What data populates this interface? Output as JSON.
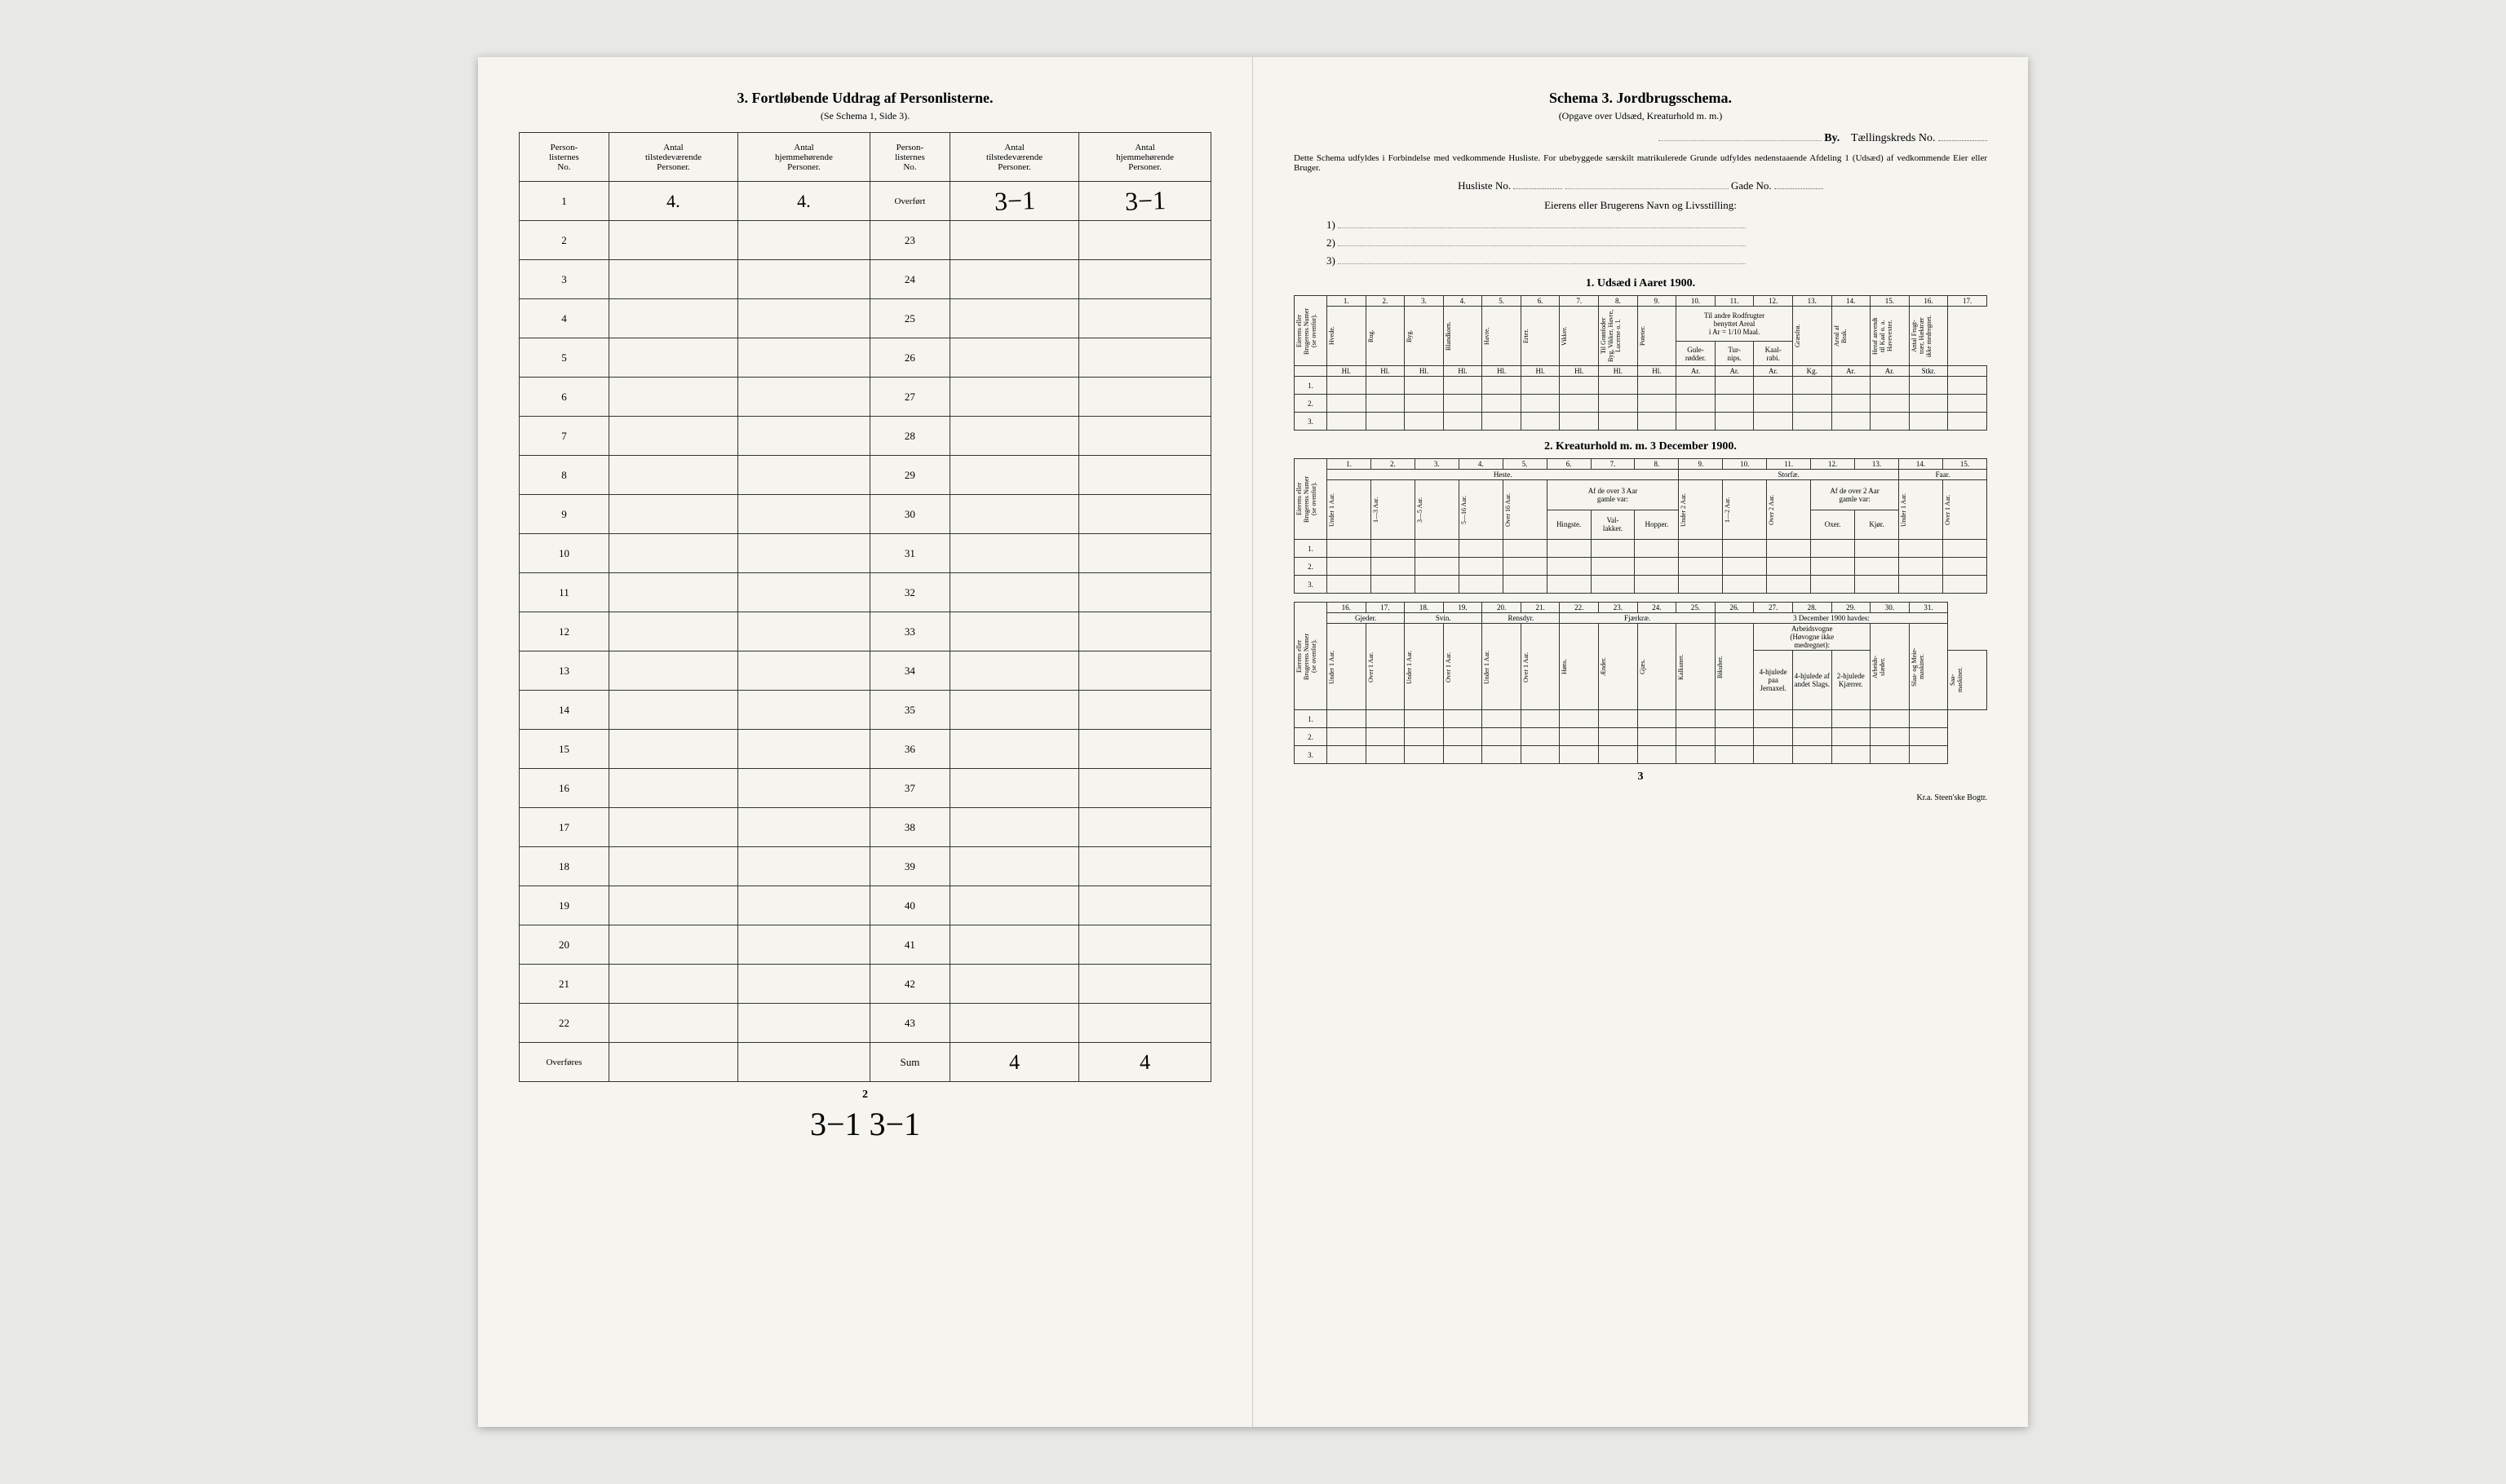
{
  "left_page": {
    "title": "3.  Fortløbende Uddrag af Personlisterne.",
    "subtitle": "(Se Schema 1, Side 3).",
    "columns": [
      "Person-\nlisternes\nNo.",
      "Antal\ntilstedeværende\nPersoner.",
      "Antal\nhjemmehørende\nPersoner.",
      "Person-\nlisternes\nNo.",
      "Antal\ntilstedeværende\nPersoner.",
      "Antal\nhjemmehørende\nPersoner."
    ],
    "left_rows": [
      "1",
      "2",
      "3",
      "4",
      "5",
      "6",
      "7",
      "8",
      "9",
      "10",
      "11",
      "12",
      "13",
      "14",
      "15",
      "16",
      "17",
      "18",
      "19",
      "20",
      "21",
      "22"
    ],
    "right_rows": [
      "Overført",
      "23",
      "24",
      "25",
      "26",
      "27",
      "28",
      "29",
      "30",
      "31",
      "32",
      "33",
      "34",
      "35",
      "36",
      "37",
      "38",
      "39",
      "40",
      "41",
      "42",
      "43"
    ],
    "left_footer": "Overføres",
    "right_footer": "Sum",
    "hw_row1_c1": "4.",
    "hw_row1_c2": "4.",
    "hw_overfort_c1": "3−1",
    "hw_overfort_c2": "3−1",
    "hw_sum_c1": "4",
    "hw_sum_c2": "4",
    "page_number": "2",
    "bottom_scrawl": "3−1 3−1"
  },
  "right_page": {
    "title": "Schema 3.  Jordbrugsschema.",
    "subtitle": "(Opgave over Udsæd, Kreaturhold m. m.)",
    "by_label": "By.",
    "kreds_label": "Tællingskreds No.",
    "intro_para": "Dette Schema udfyldes i Forbindelse med vedkommende Husliste. For ubebyggede særskilt matrikulerede Grunde udfyldes nedenstaaende Afdeling 1 (Udsæd) af vedkommende Eier eller Bruger.",
    "husliste_label": "Husliste No.",
    "gade_label": "Gade No.",
    "owner_heading": "Eierens eller Brugerens Navn og Livsstilling:",
    "numbered": [
      "1)",
      "2)",
      "3)"
    ],
    "section1_title": "1.  Udsæd i Aaret 1900.",
    "section2_title": "2.  Kreaturhold m. m. 3 December 1900.",
    "row_label_header": "Eierens eller\nBrugerens Numer\n(se ovenfor).",
    "row_nums": [
      "1.",
      "2.",
      "3."
    ],
    "t1_nums": [
      "1.",
      "2.",
      "3.",
      "4.",
      "5.",
      "6.",
      "7.",
      "8.",
      "9.",
      "10.",
      "11.",
      "12.",
      "13.",
      "14.",
      "15.",
      "16.",
      "17."
    ],
    "t1_cols": [
      "Hvede.",
      "Rug.",
      "Byg.",
      "Blandkorn.",
      "Havre.",
      "Erter.",
      "Vikker.",
      "Til Grønfoder\nByg, Vikker, Havre,\nLucerne o. l.",
      "Poteter."
    ],
    "t1_group": "Til andre Rodfrugter\nbenyttet Areal\ni Ar = 1/10 Maal.",
    "t1_subcols": [
      "Gule-\nrødder.",
      "Tur-\nnips.",
      "Kaal-\nrabi."
    ],
    "t1_tail": [
      "Græsfrø.",
      "Areal af\nBrak.",
      "Heraf anvendt\ntil Kaal o. a.\nHavevexter.",
      "Antal Frugt-\ntrær, Hæktrær\nikke medregnet."
    ],
    "t1_units": [
      "Hl.",
      "Hl.",
      "Hl.",
      "Hl.",
      "Hl.",
      "Hl.",
      "Hl.",
      "Hl.",
      "Hl.",
      "Ar.",
      "Ar.",
      "Ar.",
      "Kg.",
      "Ar.",
      "Ar.",
      "Stkr."
    ],
    "t2_nums": [
      "1.",
      "2.",
      "3.",
      "4.",
      "5.",
      "6.",
      "7.",
      "8.",
      "9.",
      "10.",
      "11.",
      "12.",
      "13.",
      "14.",
      "15."
    ],
    "t2_group1": "Heste.",
    "t2_group2": "Storfæ.",
    "t2_group3": "Faar.",
    "t2a": [
      "Under 1 Aar.",
      "1—3 Aar.",
      "3—5 Aar.",
      "5—16 Aar.",
      "Over 16 Aar."
    ],
    "t2a_sub_label": "Af de over 3 Aar\ngamle var:",
    "t2a_sub": [
      "Hingste.",
      "Val-\nlakker.",
      "Hopper."
    ],
    "t2b": [
      "Under 2 Aar.",
      "1—2 Aar.",
      "Over 2 Aar."
    ],
    "t2b_sub_label": "Af de over 2 Aar\ngamle var:",
    "t2b_sub": [
      "Oxer.",
      "Kjør."
    ],
    "t2c": [
      "Under 1 Aar.",
      "Over 1 Aar."
    ],
    "t3_nums": [
      "16.",
      "17.",
      "18.",
      "19.",
      "20.",
      "21.",
      "22.",
      "23.",
      "24.",
      "25.",
      "26.",
      "27.",
      "28.",
      "29.",
      "30.",
      "31."
    ],
    "t3_g1": "Gjeder.",
    "t3_g2": "Svin.",
    "t3_g3": "Rensdyr.",
    "t3_g4": "Fjærkræ.",
    "t3_g5": "3 December 1900 havdes:",
    "t3_pair": [
      "Under 1 Aar.",
      "Over 1 Aar."
    ],
    "t3_fj": [
      "Høns.",
      "Ænder.",
      "Gjæs.",
      "Kalkuner."
    ],
    "t3_bik": "Bikuber.",
    "t3_arb_hdr": "Arbeidsvogne\n(Høvogne ikke\nmedregnet):",
    "t3_arb": [
      "4-hjulede\npaa Jernaxel.",
      "4-hjulede af\nandet Slags.",
      "2-hjulede\nKjærrer."
    ],
    "t3_tail": [
      "Arbeids-\nslæder.",
      "Slaa- og Meie-\nmaskiner.",
      "Saa-\nmaskiner."
    ],
    "page_number": "3",
    "printer": "Kr.a.  Steen'ske Bogtr."
  },
  "colors": {
    "paper": "#f5f4ef",
    "ink": "#222222",
    "bg": "#e8e8e6"
  }
}
